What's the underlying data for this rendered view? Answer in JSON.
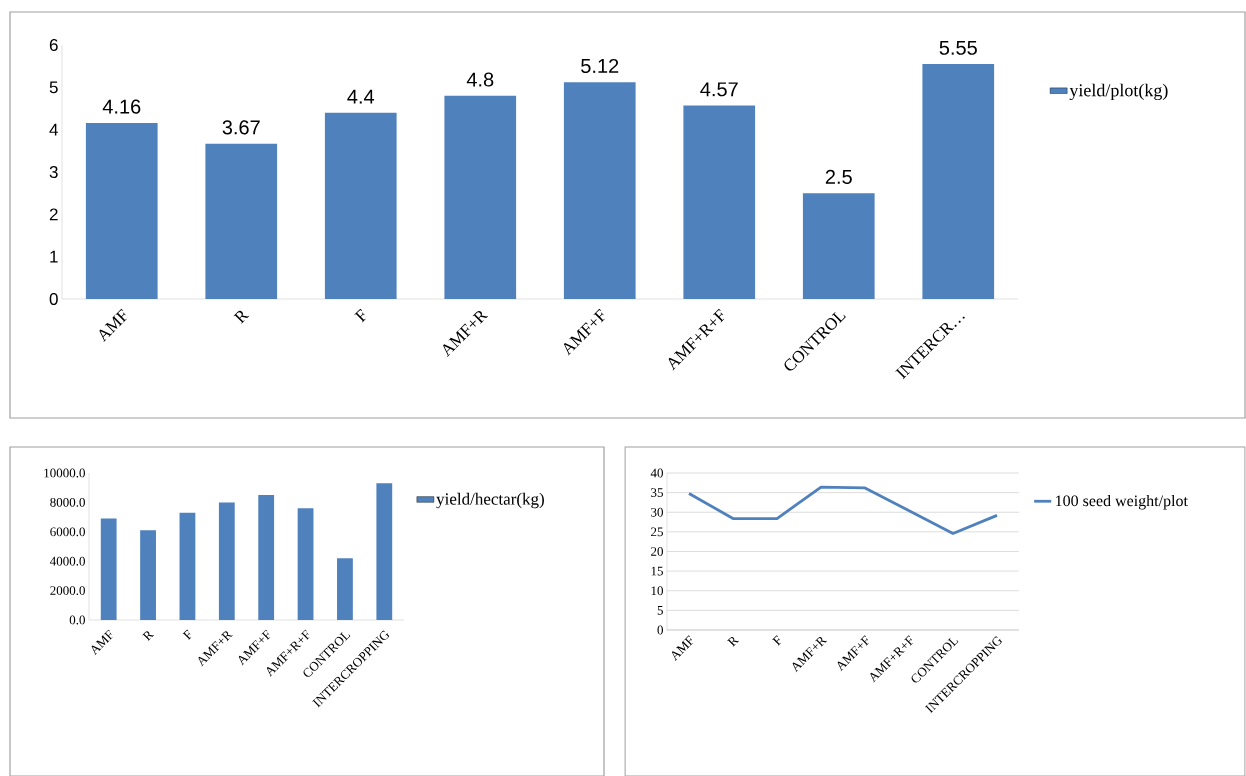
{
  "chart_data": [
    {
      "type": "bar",
      "categories": [
        "AMF",
        "R",
        "F",
        "AMF+R",
        "AMF+F",
        "AMF+R+F",
        "CONTROL",
        "INTERCR…"
      ],
      "series": [
        {
          "name": "yield/plot(kg)",
          "color": "#4f81bd",
          "values": [
            4.16,
            3.67,
            4.4,
            4.8,
            5.12,
            4.57,
            2.5,
            5.55
          ]
        }
      ],
      "ylim": [
        0,
        6
      ],
      "yticks": [
        0,
        1,
        2,
        3,
        4,
        5,
        6
      ],
      "data_labels": true,
      "grid": false,
      "legend": "right"
    },
    {
      "type": "bar",
      "categories": [
        "AMF",
        "R",
        "F",
        "AMF+R",
        "AMF+F",
        "AMF+R+F",
        "CONTROL",
        "INTERCROPPING"
      ],
      "series": [
        {
          "name": "yield/hectar(kg)",
          "color": "#4f81bd",
          "values": [
            6900,
            6100,
            7300,
            8000,
            8500,
            7600,
            4200,
            9300
          ]
        }
      ],
      "ylim": [
        0,
        10000
      ],
      "yticks": [
        {
          "value": 0,
          "label": "0.0"
        },
        {
          "value": 2000,
          "label": "2000.0"
        },
        {
          "value": 4000,
          "label": "4000.0"
        },
        {
          "value": 6000,
          "label": "6000.0"
        },
        {
          "value": 8000,
          "label": "8000.0"
        },
        {
          "value": 10000,
          "label": "10000.0"
        }
      ],
      "grid": false,
      "legend": "right"
    },
    {
      "type": "line",
      "categories": [
        "AMF",
        "R",
        "F",
        "AMF+R",
        "AMF+F",
        "AMF+R+F",
        "CONTROL",
        "INTERCROPPING"
      ],
      "series": [
        {
          "name": "100 seed weight/plot",
          "color": "#4f81bd",
          "values": [
            34.8,
            28.4,
            28.4,
            36.4,
            36.2,
            30.4,
            24.6,
            29.2
          ]
        }
      ],
      "ylim": [
        0,
        40
      ],
      "yticks": [
        0,
        5,
        10,
        15,
        20,
        25,
        30,
        35,
        40
      ],
      "grid": "y",
      "legend": "right",
      "marker": "none",
      "line_style": "solid"
    }
  ]
}
